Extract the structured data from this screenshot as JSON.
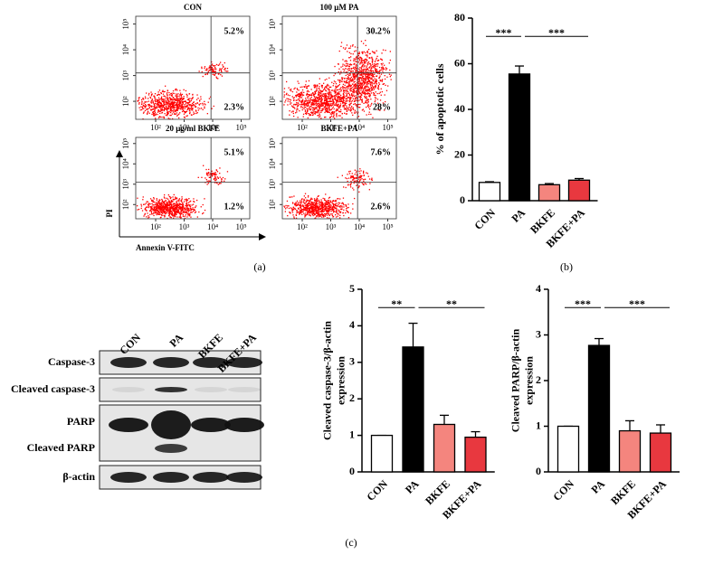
{
  "chart_data": [
    {
      "type": "flow",
      "xlabel": "Annexin V-FITC",
      "ylabel": "PI",
      "log": true,
      "color": "#ff0000",
      "xlim": [
        20,
        200000
      ],
      "ylim": [
        20,
        200000
      ],
      "xticks": [
        {
          "value": 100,
          "label": "10²"
        },
        {
          "value": 1000,
          "label": "10³"
        },
        {
          "value": 10000,
          "label": "10⁴"
        },
        {
          "value": 100000,
          "label": "10⁵"
        }
      ],
      "yticks": [
        {
          "value": 100,
          "label": "10²"
        },
        {
          "value": 1000,
          "label": "10³"
        },
        {
          "value": 10000,
          "label": "10⁴"
        },
        {
          "value": 100000,
          "label": "10⁵"
        }
      ],
      "panels": [
        {
          "title": "CON",
          "upper_right": {
            "value": 5.2,
            "label": "5.2%"
          },
          "lower_right": {
            "value": 2.3,
            "label": "2.3%"
          }
        },
        {
          "title": "100 μM PA",
          "upper_right": {
            "value": 30.2,
            "label": "30.2%"
          },
          "lower_right": {
            "value": 28,
            "label": "28%"
          }
        },
        {
          "title": "20 μg/ml BKFE",
          "upper_right": {
            "value": 5.1,
            "label": "5.1%"
          },
          "lower_right": {
            "value": 1.2,
            "label": "1.2%"
          }
        },
        {
          "title": "BKFE+PA",
          "upper_right": {
            "value": 7.6,
            "label": "7.6%"
          },
          "lower_right": {
            "value": 2.6,
            "label": "2.6%"
          }
        }
      ]
    },
    {
      "type": "bar",
      "ylabel": [
        "% of apoptotic cells"
      ],
      "categories": [
        "CON",
        "PA",
        "BKFE",
        "BKFE+PA"
      ],
      "values": [
        8,
        55.5,
        7,
        9
      ],
      "errors": [
        0.3,
        3.5,
        0.5,
        0.7
      ],
      "colors": [
        "#ffffff",
        "#000000",
        "#f4857e",
        "#e8383f"
      ],
      "ylim": [
        0,
        80
      ],
      "yticks": [
        0,
        20,
        40,
        60,
        80
      ],
      "annotations": [
        "***",
        "***"
      ]
    },
    {
      "type": "bar",
      "ylabel": [
        "Cleaved caspase-3/β-actin",
        "expression"
      ],
      "categories": [
        "CON",
        "PA",
        "BKFE",
        "BKFE+PA"
      ],
      "values": [
        1,
        3.42,
        1.3,
        0.95
      ],
      "errors": [
        0,
        0.65,
        0.25,
        0.15
      ],
      "colors": [
        "#ffffff",
        "#000000",
        "#f4857e",
        "#e8383f"
      ],
      "ylim": [
        0,
        5
      ],
      "yticks": [
        0,
        1,
        2,
        3,
        4,
        5
      ],
      "annotations": [
        "**",
        "**"
      ]
    },
    {
      "type": "bar",
      "ylabel": [
        "Cleaved PARP/β-actin",
        "expression"
      ],
      "categories": [
        "CON",
        "PA",
        "BKFE",
        "BKFE+PA"
      ],
      "values": [
        1,
        2.77,
        0.9,
        0.85
      ],
      "errors": [
        0,
        0.15,
        0.22,
        0.18
      ],
      "colors": [
        "#ffffff",
        "#000000",
        "#f4857e",
        "#e8383f"
      ],
      "ylim": [
        0,
        4
      ],
      "yticks": [
        0,
        1,
        2,
        3,
        4
      ],
      "annotations": [
        "***",
        "***"
      ]
    }
  ],
  "blot": {
    "lanes": [
      "CON",
      "PA",
      "BKFE",
      "BKFE+PA"
    ],
    "rows": [
      "Caspase-3",
      "Cleaved caspase-3",
      "PARP",
      "Cleaved PARP",
      "β-actin"
    ]
  },
  "panel_labels": [
    "(a)",
    "(b)",
    "(c)"
  ]
}
